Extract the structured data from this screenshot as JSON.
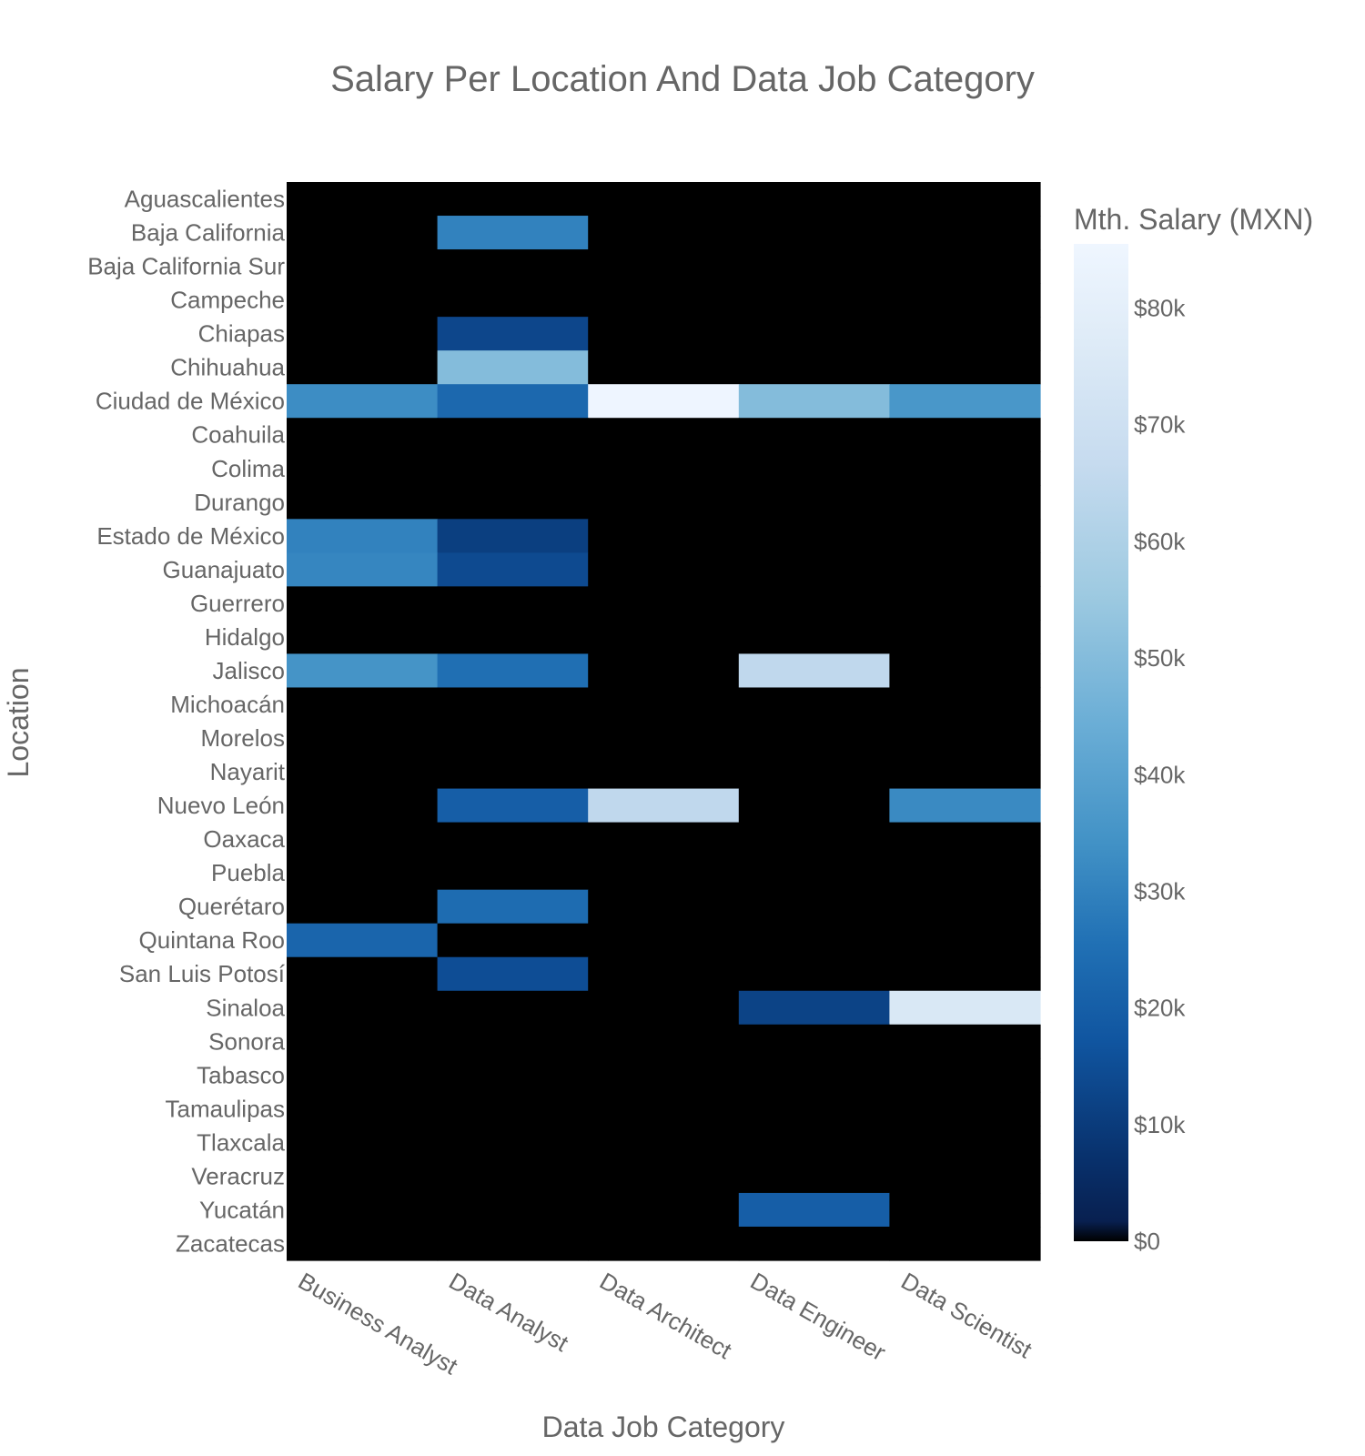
{
  "chart_data": {
    "type": "heatmap",
    "title": "Salary Per Location And Data Job Category",
    "xlabel": "Data Job Category",
    "ylabel": "Location",
    "x_categories": [
      "Business Analyst",
      "Data Analyst",
      "Data Architect",
      "Data Engineer",
      "Data Scientist"
    ],
    "y_categories": [
      "Aguascalientes",
      "Baja California",
      "Baja California Sur",
      "Campeche",
      "Chiapas",
      "Chihuahua",
      "Ciudad de México",
      "Coahuila",
      "Colima",
      "Durango",
      "Estado de México",
      "Guanajuato",
      "Guerrero",
      "Hidalgo",
      "Jalisco",
      "Michoacán",
      "Morelos",
      "Nayarit",
      "Nuevo León",
      "Oaxaca",
      "Puebla",
      "Querétaro",
      "Quintana Roo",
      "San Luis Potosí",
      "Sinaloa",
      "Sonora",
      "Tabasco",
      "Tamaulipas",
      "Tlaxcala",
      "Veracruz",
      "Yucatán",
      "Zacatecas"
    ],
    "z": [
      [
        0,
        0,
        0,
        0,
        0
      ],
      [
        0,
        30000,
        0,
        0,
        0
      ],
      [
        0,
        0,
        0,
        0,
        0
      ],
      [
        0,
        0,
        0,
        0,
        0
      ],
      [
        0,
        13000,
        0,
        0,
        0
      ],
      [
        0,
        50000,
        0,
        0,
        0
      ],
      [
        33000,
        23000,
        85000,
        50000,
        36000
      ],
      [
        0,
        0,
        0,
        0,
        0
      ],
      [
        0,
        0,
        0,
        0,
        0
      ],
      [
        0,
        0,
        0,
        0,
        0
      ],
      [
        30000,
        11000,
        0,
        0,
        0
      ],
      [
        31000,
        14000,
        0,
        0,
        0
      ],
      [
        0,
        0,
        0,
        0,
        0
      ],
      [
        0,
        0,
        0,
        0,
        0
      ],
      [
        35000,
        25000,
        0,
        65000,
        0
      ],
      [
        0,
        0,
        0,
        0,
        0
      ],
      [
        0,
        0,
        0,
        0,
        0
      ],
      [
        0,
        0,
        0,
        0,
        0
      ],
      [
        0,
        20000,
        65000,
        0,
        32000
      ],
      [
        0,
        0,
        0,
        0,
        0
      ],
      [
        0,
        0,
        0,
        0,
        0
      ],
      [
        0,
        24000,
        0,
        0,
        0
      ],
      [
        22000,
        0,
        0,
        0,
        0
      ],
      [
        0,
        15000,
        0,
        0,
        0
      ],
      [
        0,
        0,
        0,
        12000,
        75000
      ],
      [
        0,
        0,
        0,
        0,
        0
      ],
      [
        0,
        0,
        0,
        0,
        0
      ],
      [
        0,
        0,
        0,
        0,
        0
      ],
      [
        0,
        0,
        0,
        0,
        0
      ],
      [
        0,
        0,
        0,
        0,
        0
      ],
      [
        0,
        0,
        0,
        20000,
        0
      ],
      [
        0,
        0,
        0,
        0,
        0
      ]
    ],
    "z_overrides_note": "",
    "colorscale_name": "Blues reversed with black at zero",
    "colorbar": {
      "title": "Mth. Salary (MXN)",
      "range": [
        0,
        85500
      ],
      "tickvals": [
        0,
        10000,
        20000,
        30000,
        40000,
        50000,
        60000,
        70000,
        80000
      ],
      "ticktext": [
        "$0",
        "$10k",
        "$20k",
        "$30k",
        "$40k",
        "$50k",
        "$60k",
        "$70k",
        "$80k"
      ]
    }
  },
  "colors": {
    "text": "#666666",
    "background": "#ffffff",
    "zero": "#000000"
  }
}
